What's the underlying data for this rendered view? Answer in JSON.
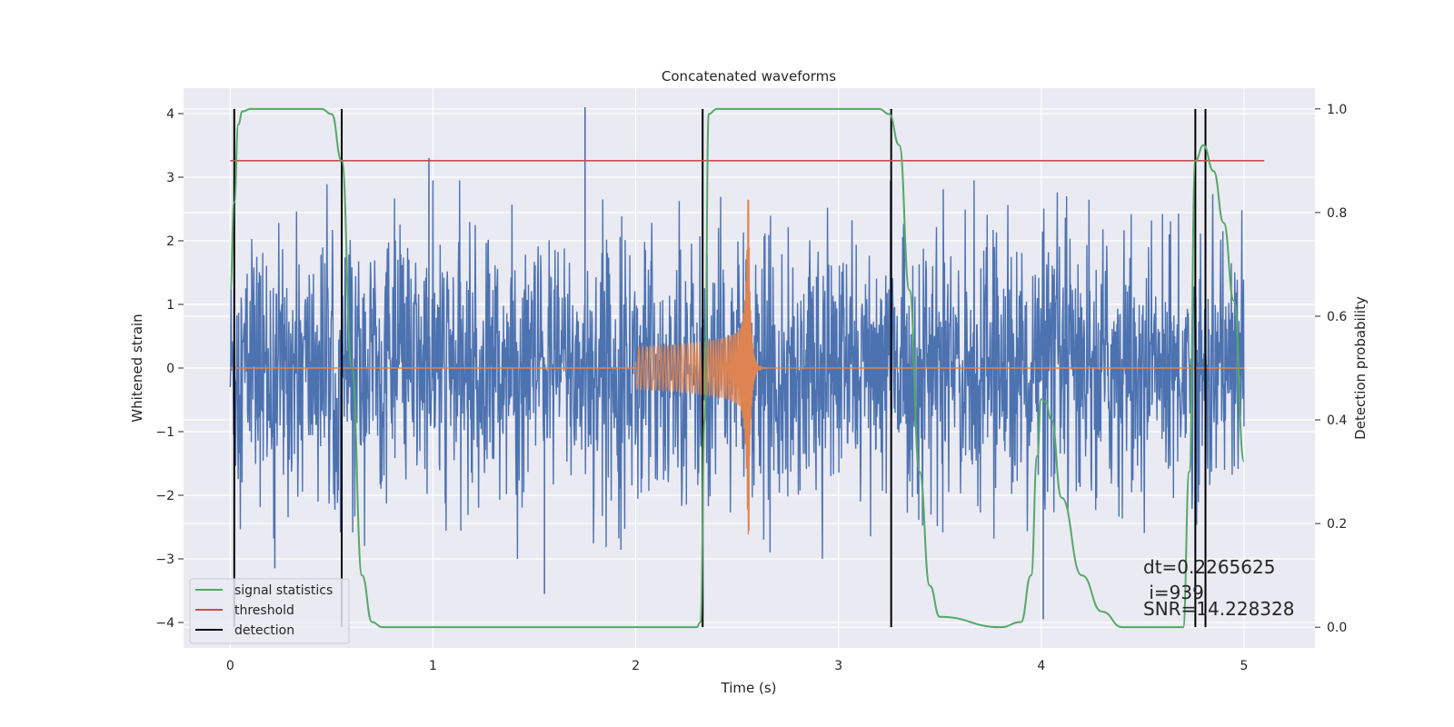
{
  "chart_data": {
    "type": "line",
    "title": "Concatenated waveforms",
    "xlabel": "Time (s)",
    "ylabel": "Whitened strain",
    "y2label": "Detection probability",
    "xlim": [
      -0.23,
      5.35
    ],
    "ylim": [
      -4.4,
      4.4
    ],
    "y2lim": [
      -0.04,
      1.04
    ],
    "x_ticks": [
      0,
      1,
      2,
      3,
      4,
      5
    ],
    "x_tick_labels": [
      "0",
      "1",
      "2",
      "3",
      "4",
      "5"
    ],
    "y_ticks": [
      -4,
      -3,
      -2,
      -1,
      0,
      1,
      2,
      3,
      4
    ],
    "y_tick_labels": [
      "−4",
      "−3",
      "−2",
      "−1",
      "0",
      "1",
      "2",
      "3",
      "4"
    ],
    "y2_ticks": [
      0.0,
      0.2,
      0.4,
      0.6,
      0.8,
      1.0
    ],
    "y2_tick_labels": [
      "0.0",
      "0.2",
      "0.4",
      "0.6",
      "0.8",
      "1.0"
    ],
    "grid": true,
    "legend_position": "lower-left",
    "series": [
      {
        "name": "",
        "kind": "noise-strain",
        "axis": "left",
        "color": "#4c72b0",
        "x_range": [
          0,
          5
        ],
        "typical_amplitude": 2.3,
        "notable_peaks": [
          {
            "x": 1.75,
            "y": 4.1
          },
          {
            "x": 0.98,
            "y": 3.3
          },
          {
            "x": 1.55,
            "y": -3.55
          },
          {
            "x": 0.22,
            "y": -3.15
          },
          {
            "x": 4.01,
            "y": -3.95
          }
        ]
      },
      {
        "name": "",
        "kind": "chirp-waveform",
        "axis": "left",
        "color": "#dd8452",
        "x_range": [
          2.0,
          3.0
        ],
        "peak_time": 2.56,
        "peak_amplitude": 2.65
      },
      {
        "name": "signal statistics",
        "axis": "right",
        "color": "#55a868",
        "x": [
          0,
          0.02,
          0.04,
          0.06,
          0.1,
          0.2,
          0.45,
          0.5,
          0.55,
          0.6,
          0.65,
          0.7,
          0.75,
          1.0,
          2.0,
          2.3,
          2.32,
          2.34,
          2.36,
          2.4,
          2.6,
          3.2,
          3.25,
          3.3,
          3.35,
          3.4,
          3.45,
          3.5,
          3.8,
          3.9,
          3.95,
          3.98,
          4.0,
          4.02,
          4.05,
          4.1,
          4.2,
          4.3,
          4.4,
          4.5,
          4.7,
          4.73,
          4.76,
          4.8,
          4.85,
          4.9,
          4.95,
          5.0
        ],
        "y": [
          0.65,
          0.82,
          0.97,
          0.995,
          1.0,
          1.0,
          1.0,
          0.99,
          0.9,
          0.5,
          0.1,
          0.01,
          0.0,
          0.0,
          0.0,
          0.0,
          0.01,
          0.4,
          0.99,
          1.0,
          1.0,
          1.0,
          0.99,
          0.93,
          0.65,
          0.3,
          0.08,
          0.02,
          0.0,
          0.01,
          0.1,
          0.33,
          0.44,
          0.435,
          0.4,
          0.25,
          0.1,
          0.03,
          0.0,
          0.0,
          0.0,
          0.3,
          0.9,
          0.93,
          0.88,
          0.78,
          0.63,
          0.32
        ]
      },
      {
        "name": "threshold",
        "axis": "right",
        "color": "#c44e52",
        "x": [
          0,
          5.1
        ],
        "y": [
          0.9,
          0.9
        ]
      },
      {
        "name": "detection",
        "axis": "left",
        "color": "#000000",
        "kind": "vertical-lines",
        "x": [
          0.02,
          0.55,
          2.33,
          3.26,
          4.76,
          4.81
        ]
      }
    ],
    "annotations": [
      "dt=0.2265625",
      " i=939",
      "SNR=14.228328"
    ],
    "colors": {
      "figure_background": "#ffffff",
      "plot_background": "#eaeaf2",
      "grid": "#ffffff",
      "text": "#262626"
    }
  }
}
